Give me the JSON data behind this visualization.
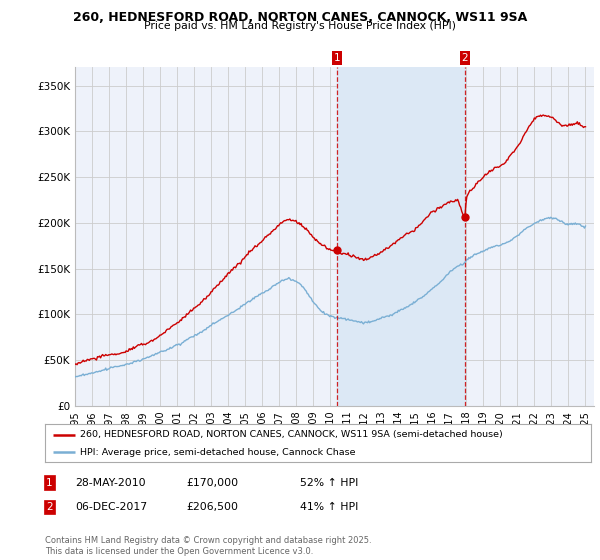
{
  "title_line1": "260, HEDNESFORD ROAD, NORTON CANES, CANNOCK, WS11 9SA",
  "title_line2": "Price paid vs. HM Land Registry's House Price Index (HPI)",
  "yticks": [
    0,
    50000,
    100000,
    150000,
    200000,
    250000,
    300000,
    350000
  ],
  "ytick_labels": [
    "£0",
    "£50K",
    "£100K",
    "£150K",
    "£200K",
    "£250K",
    "£300K",
    "£350K"
  ],
  "xmin": 1995.0,
  "xmax": 2025.5,
  "ymin": 0,
  "ymax": 370000,
  "sale1_date": 2010.41,
  "sale1_price": 170000,
  "sale1_label": "1",
  "sale2_date": 2017.92,
  "sale2_price": 206500,
  "sale2_label": "2",
  "annotation1_date": "28-MAY-2010",
  "annotation1_price": "£170,000",
  "annotation1_pct": "52% ↑ HPI",
  "annotation2_date": "06-DEC-2017",
  "annotation2_price": "£206,500",
  "annotation2_pct": "41% ↑ HPI",
  "line_color_red": "#cc0000",
  "line_color_blue": "#7aafd4",
  "vline_color": "#cc0000",
  "grid_color": "#cccccc",
  "background_color": "#ffffff",
  "plot_bg_color": "#eef2fa",
  "shade_color": "#dce8f5",
  "legend_label_red": "260, HEDNESFORD ROAD, NORTON CANES, CANNOCK, WS11 9SA (semi-detached house)",
  "legend_label_blue": "HPI: Average price, semi-detached house, Cannock Chase",
  "footer": "Contains HM Land Registry data © Crown copyright and database right 2025.\nThis data is licensed under the Open Government Licence v3.0.",
  "xticks": [
    1995,
    1996,
    1997,
    1998,
    1999,
    2000,
    2001,
    2002,
    2003,
    2004,
    2005,
    2006,
    2007,
    2008,
    2009,
    2010,
    2011,
    2012,
    2013,
    2014,
    2015,
    2016,
    2017,
    2018,
    2019,
    2020,
    2021,
    2022,
    2023,
    2024,
    2025
  ],
  "red_key_points": [
    [
      1995.0,
      46000
    ],
    [
      1996.5,
      52000
    ],
    [
      1998.0,
      60000
    ],
    [
      1999.5,
      72000
    ],
    [
      2001.0,
      90000
    ],
    [
      2002.5,
      115000
    ],
    [
      2004.0,
      145000
    ],
    [
      2005.5,
      172000
    ],
    [
      2007.0,
      198000
    ],
    [
      2007.5,
      205000
    ],
    [
      2008.0,
      202000
    ],
    [
      2008.5,
      195000
    ],
    [
      2009.0,
      185000
    ],
    [
      2009.5,
      178000
    ],
    [
      2010.0,
      172000
    ],
    [
      2010.41,
      170000
    ],
    [
      2011.0,
      168000
    ],
    [
      2011.5,
      165000
    ],
    [
      2012.0,
      163000
    ],
    [
      2012.5,
      168000
    ],
    [
      2013.0,
      172000
    ],
    [
      2013.5,
      178000
    ],
    [
      2014.0,
      185000
    ],
    [
      2014.5,
      190000
    ],
    [
      2015.0,
      196000
    ],
    [
      2015.5,
      205000
    ],
    [
      2016.0,
      215000
    ],
    [
      2016.5,
      220000
    ],
    [
      2017.0,
      225000
    ],
    [
      2017.5,
      228000
    ],
    [
      2017.92,
      206500
    ],
    [
      2018.0,
      232000
    ],
    [
      2018.5,
      242000
    ],
    [
      2019.0,
      252000
    ],
    [
      2019.5,
      258000
    ],
    [
      2020.0,
      262000
    ],
    [
      2020.5,
      272000
    ],
    [
      2021.0,
      285000
    ],
    [
      2021.5,
      300000
    ],
    [
      2022.0,
      315000
    ],
    [
      2022.5,
      320000
    ],
    [
      2023.0,
      318000
    ],
    [
      2023.5,
      310000
    ],
    [
      2024.0,
      308000
    ],
    [
      2024.5,
      312000
    ],
    [
      2025.0,
      305000
    ]
  ],
  "blue_key_points": [
    [
      1995.0,
      32000
    ],
    [
      1996.5,
      38000
    ],
    [
      1998.0,
      46000
    ],
    [
      1999.5,
      56000
    ],
    [
      2001.0,
      68000
    ],
    [
      2002.5,
      82000
    ],
    [
      2004.0,
      100000
    ],
    [
      2005.5,
      120000
    ],
    [
      2007.0,
      138000
    ],
    [
      2007.5,
      143000
    ],
    [
      2008.0,
      140000
    ],
    [
      2008.5,
      132000
    ],
    [
      2009.0,
      118000
    ],
    [
      2009.5,
      108000
    ],
    [
      2010.0,
      102000
    ],
    [
      2010.5,
      100000
    ],
    [
      2011.0,
      98000
    ],
    [
      2011.5,
      96000
    ],
    [
      2012.0,
      94000
    ],
    [
      2012.5,
      95000
    ],
    [
      2013.0,
      97000
    ],
    [
      2013.5,
      100000
    ],
    [
      2014.0,
      105000
    ],
    [
      2014.5,
      110000
    ],
    [
      2015.0,
      116000
    ],
    [
      2015.5,
      122000
    ],
    [
      2016.0,
      130000
    ],
    [
      2016.5,
      138000
    ],
    [
      2017.0,
      148000
    ],
    [
      2017.5,
      155000
    ],
    [
      2017.92,
      158000
    ],
    [
      2018.0,
      162000
    ],
    [
      2018.5,
      168000
    ],
    [
      2019.0,
      172000
    ],
    [
      2019.5,
      176000
    ],
    [
      2020.0,
      178000
    ],
    [
      2020.5,
      182000
    ],
    [
      2021.0,
      188000
    ],
    [
      2021.5,
      196000
    ],
    [
      2022.0,
      202000
    ],
    [
      2022.5,
      206000
    ],
    [
      2023.0,
      208000
    ],
    [
      2023.5,
      205000
    ],
    [
      2024.0,
      200000
    ],
    [
      2024.5,
      202000
    ],
    [
      2025.0,
      198000
    ]
  ]
}
